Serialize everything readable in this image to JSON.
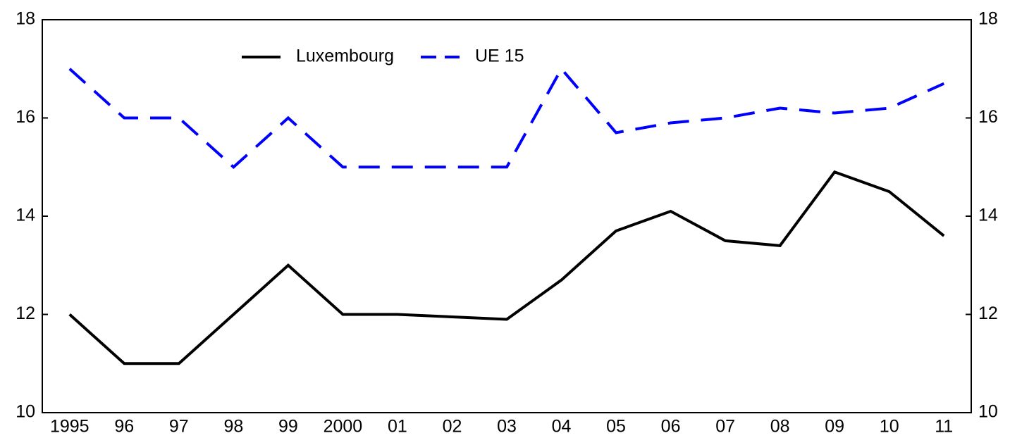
{
  "chart_data": {
    "type": "line",
    "categories": [
      "1995",
      "96",
      "97",
      "98",
      "99",
      "2000",
      "01",
      "02",
      "03",
      "04",
      "05",
      "06",
      "07",
      "08",
      "09",
      "10",
      "11"
    ],
    "series": [
      {
        "name": "Luxembourg",
        "color": "#000000",
        "dash": false,
        "values": [
          12,
          11,
          11,
          12,
          13,
          12,
          12,
          11.95,
          11.9,
          12.7,
          13.7,
          14.1,
          13.5,
          13.4,
          14.9,
          14.5,
          13.6
        ]
      },
      {
        "name": "UE 15",
        "color": "#0000ff",
        "dash": true,
        "values": [
          17,
          16,
          16,
          15,
          16,
          15,
          15,
          15,
          15,
          17,
          15.7,
          15.9,
          16,
          16.2,
          16.1,
          16.2,
          16.7
        ]
      }
    ],
    "ylim": [
      10,
      18
    ],
    "yticks": [
      10,
      12,
      14,
      16,
      18
    ],
    "y2lim": [
      10,
      18
    ],
    "y2ticks": [
      10,
      12,
      14,
      16,
      18
    ],
    "legend": "upper center",
    "grid": false
  }
}
